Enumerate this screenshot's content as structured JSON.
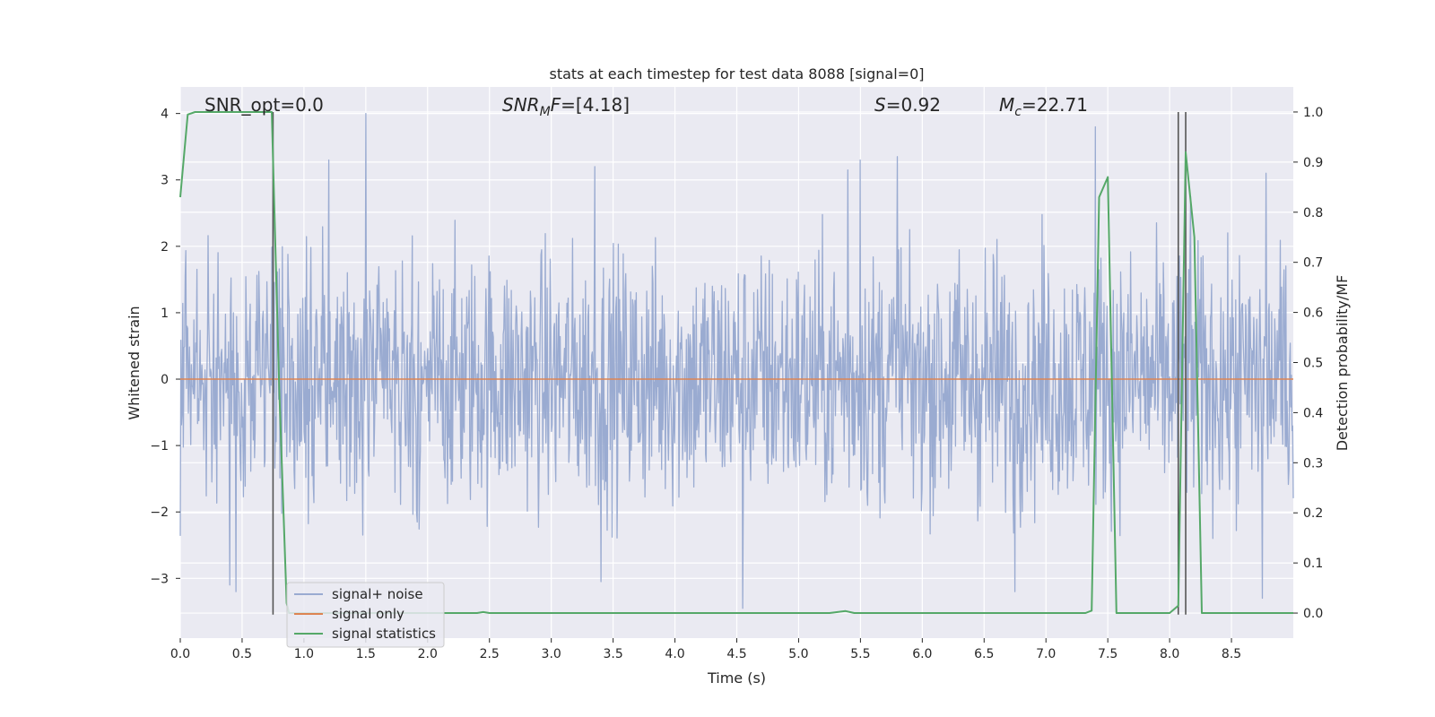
{
  "chart_data": {
    "type": "line",
    "title": "stats at each timestep for test data 8088 [signal=0]",
    "xlabel": "Time (s)",
    "ylabel_left": "Whitened strain",
    "ylabel_right": "Detection probability/MF",
    "xlim": [
      0.0,
      9.0
    ],
    "ylim_left": [
      -3.9,
      4.4
    ],
    "ylim_right": [
      -0.05,
      1.05
    ],
    "x_ticks": [
      "0.0",
      "0.5",
      "1.0",
      "1.5",
      "2.0",
      "2.5",
      "3.0",
      "3.5",
      "4.0",
      "4.5",
      "5.0",
      "5.5",
      "6.0",
      "6.5",
      "7.0",
      "7.5",
      "8.0",
      "8.5"
    ],
    "y_ticks_left": [
      "4",
      "3",
      "2",
      "1",
      "0",
      "−1",
      "−2",
      "−3"
    ],
    "y_ticks_right": [
      "1.0",
      "0.9",
      "0.8",
      "0.7",
      "0.6",
      "0.5",
      "0.4",
      "0.3",
      "0.2",
      "0.1",
      "0.0"
    ],
    "grid": true,
    "legend_position": "lower-left",
    "annotations": [
      {
        "id": "snr_opt",
        "prefix": "SNR_opt=",
        "value": "0.0"
      },
      {
        "id": "snr_mf",
        "base": "SNR",
        "sub": "M",
        "rest": "F=",
        "value": "[4.18]"
      },
      {
        "id": "s",
        "label": "S",
        "eq": "=",
        "value": "0.92"
      },
      {
        "id": "mc",
        "base": "M",
        "sub": "c",
        "eq": "=",
        "value": "22.71"
      }
    ],
    "series": [
      {
        "name": "signal+ noise",
        "color": "#9aabd1",
        "axis": "left",
        "description": "dense whitened-strain noise trace, roughly within ±2.5 with peaks near 4.0 at t≈1.5 and troughs near −3.5 at t≈4.55",
        "typical_range": [
          -2.4,
          2.5
        ],
        "peaks": [
          {
            "x": 0.75,
            "y": 2.4
          },
          {
            "x": 1.2,
            "y": 3.3
          },
          {
            "x": 1.5,
            "y": 4.0
          },
          {
            "x": 3.35,
            "y": 3.2
          },
          {
            "x": 5.4,
            "y": 3.15
          },
          {
            "x": 5.5,
            "y": 3.3
          },
          {
            "x": 5.8,
            "y": 3.35
          },
          {
            "x": 7.4,
            "y": 3.8
          },
          {
            "x": 8.17,
            "y": 2.75
          },
          {
            "x": 8.78,
            "y": 3.1
          }
        ],
        "troughs": [
          {
            "x": 0.4,
            "y": -3.1
          },
          {
            "x": 0.45,
            "y": -3.2
          },
          {
            "x": 3.4,
            "y": -3.05
          },
          {
            "x": 4.55,
            "y": -3.45
          },
          {
            "x": 6.75,
            "y": -3.2
          },
          {
            "x": 8.75,
            "y": -3.3
          }
        ]
      },
      {
        "name": "signal only",
        "color": "#dd8452",
        "axis": "left",
        "x": [
          0.0,
          9.0
        ],
        "y": [
          0.0,
          0.0
        ]
      },
      {
        "name": "signal statistics",
        "color": "#55a868",
        "axis": "right",
        "x": [
          0.0,
          0.06,
          0.12,
          0.25,
          0.5,
          0.7,
          0.74,
          0.8,
          0.86,
          0.88,
          1.0,
          2.0,
          2.4,
          2.45,
          2.5,
          3.0,
          4.0,
          5.0,
          5.25,
          5.38,
          5.45,
          6.0,
          7.0,
          7.32,
          7.37,
          7.43,
          7.5,
          7.57,
          7.62,
          8.0,
          8.07,
          8.13,
          8.2,
          8.26,
          8.3,
          9.0
        ],
        "y": [
          0.83,
          0.995,
          1.0,
          1.0,
          1.0,
          1.0,
          1.0,
          0.45,
          0.02,
          0.0,
          0.0,
          0.0,
          0.0,
          0.002,
          0.0,
          0.0,
          0.0,
          0.0,
          0.0,
          0.004,
          0.0,
          0.0,
          0.0,
          0.0,
          0.005,
          0.83,
          0.87,
          0.0,
          0.0,
          0.0,
          0.015,
          0.92,
          0.75,
          0.0,
          0.0,
          0.0
        ]
      }
    ],
    "vertical_markers": [
      {
        "x": 0.75,
        "y_from": -0.003,
        "y_to": 1.0
      },
      {
        "x": 8.07,
        "y_from": -0.003,
        "y_to": 1.0
      },
      {
        "x": 8.13,
        "y_from": -0.003,
        "y_to": 1.0
      }
    ],
    "marker_color": "#555555",
    "background_color": "#eaeaf2",
    "grid_color": "#ffffff"
  }
}
